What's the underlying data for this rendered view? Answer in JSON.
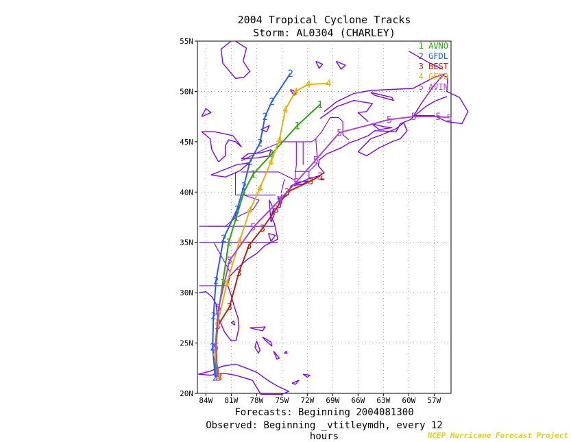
{
  "title": "2004 Tropical Cyclone Tracks",
  "subtitle": "Storm: AL0304 (CHARLEY)",
  "footer_line1": "Forecasts: Beginning 2004081300",
  "footer_line2": "Observed: Beginning _vtitleymdh, every 12 hours",
  "credit": "NCEP Hurricane Forecast Project",
  "colors": {
    "map": "#8000ff",
    "grid": "#888888",
    "AVNO": "#22aa00",
    "GFDL": "#1e5cff",
    "BEST": "#c02000",
    "GFDO": "#e8b000",
    "AVIN": "#b040d0"
  },
  "chart_data": {
    "type": "line",
    "xlim": [
      -85,
      -55
    ],
    "ylim": [
      20,
      55
    ],
    "x_ticks": [
      {
        "v": -84,
        "label": "84W"
      },
      {
        "v": -81,
        "label": "81W"
      },
      {
        "v": -78,
        "label": "78W"
      },
      {
        "v": -75,
        "label": "75W"
      },
      {
        "v": -72,
        "label": "72W"
      },
      {
        "v": -69,
        "label": "69W"
      },
      {
        "v": -66,
        "label": "66W"
      },
      {
        "v": -63,
        "label": "63W"
      },
      {
        "v": -60,
        "label": "60W"
      },
      {
        "v": -57,
        "label": "57W"
      }
    ],
    "y_ticks": [
      {
        "v": 20,
        "label": "20N"
      },
      {
        "v": 25,
        "label": "25N"
      },
      {
        "v": 30,
        "label": "30N"
      },
      {
        "v": 35,
        "label": "35N"
      },
      {
        "v": 40,
        "label": "40N"
      },
      {
        "v": 45,
        "label": "45N"
      },
      {
        "v": 50,
        "label": "50N"
      },
      {
        "v": 55,
        "label": "55N"
      }
    ],
    "grid": true,
    "legend_position": "top-right",
    "series": [
      {
        "num": "1",
        "name": "AVNO",
        "color": "#22aa00",
        "lon": [
          -82.8,
          -82.9,
          -82.6,
          -82.0,
          -81.3,
          -80.4,
          -79.5,
          -78.4,
          -76.2,
          -73.2,
          -70.5
        ],
        "lat": [
          21.6,
          24.5,
          27.6,
          31.0,
          35.0,
          37.5,
          40.0,
          41.8,
          43.8,
          46.6,
          48.7
        ]
      },
      {
        "num": "2",
        "name": "GFDL",
        "color": "#1e5cff",
        "lon": [
          -82.9,
          -83.2,
          -83.1,
          -82.8,
          -81.9,
          -80.3,
          -79.5,
          -78.8,
          -77.6,
          -77.0,
          -76.2,
          -74.0
        ],
        "lat": [
          21.6,
          24.6,
          27.7,
          31.2,
          35.4,
          38.3,
          40.6,
          43.0,
          44.9,
          47.5,
          49.0,
          51.8
        ]
      },
      {
        "num": "3",
        "name": "BEST",
        "color": "#c02000",
        "lon": [
          -82.4,
          -82.9,
          -82.6,
          -81.2,
          -80.1,
          -78.9,
          -77.3,
          -75.7,
          -74.4,
          -71.6,
          -70.5
        ],
        "lat": [
          21.6,
          23.7,
          26.7,
          28.6,
          32.0,
          34.7,
          36.4,
          38.3,
          40.0,
          41.1,
          41.6
        ]
      },
      {
        "num": "4",
        "name": "GFDO",
        "color": "#e8b000",
        "lon": [
          -82.5,
          -82.9,
          -82.6,
          -81.5,
          -80.0,
          -78.8,
          -77.6,
          -76.3,
          -75.3,
          -74.6,
          -73.4,
          -71.9,
          -69.5
        ],
        "lat": [
          21.6,
          23.9,
          27.0,
          31.0,
          35.2,
          38.2,
          40.4,
          43.0,
          45.2,
          48.2,
          50.0,
          50.7,
          50.8
        ]
      },
      {
        "num": "5",
        "name": "AVIN",
        "color": "#b040d0",
        "lon": [
          -82.6,
          -82.8,
          -82.5,
          -81.2,
          -78.4,
          -75.3,
          -73.3,
          -71.0,
          -68.2,
          -62.3,
          -59.4,
          -56.5,
          -55.2
        ],
        "lat": [
          21.6,
          24.6,
          28.5,
          33.2,
          36.5,
          39.2,
          41.0,
          43.2,
          45.9,
          47.2,
          47.5,
          47.5,
          47.4
        ]
      }
    ]
  }
}
